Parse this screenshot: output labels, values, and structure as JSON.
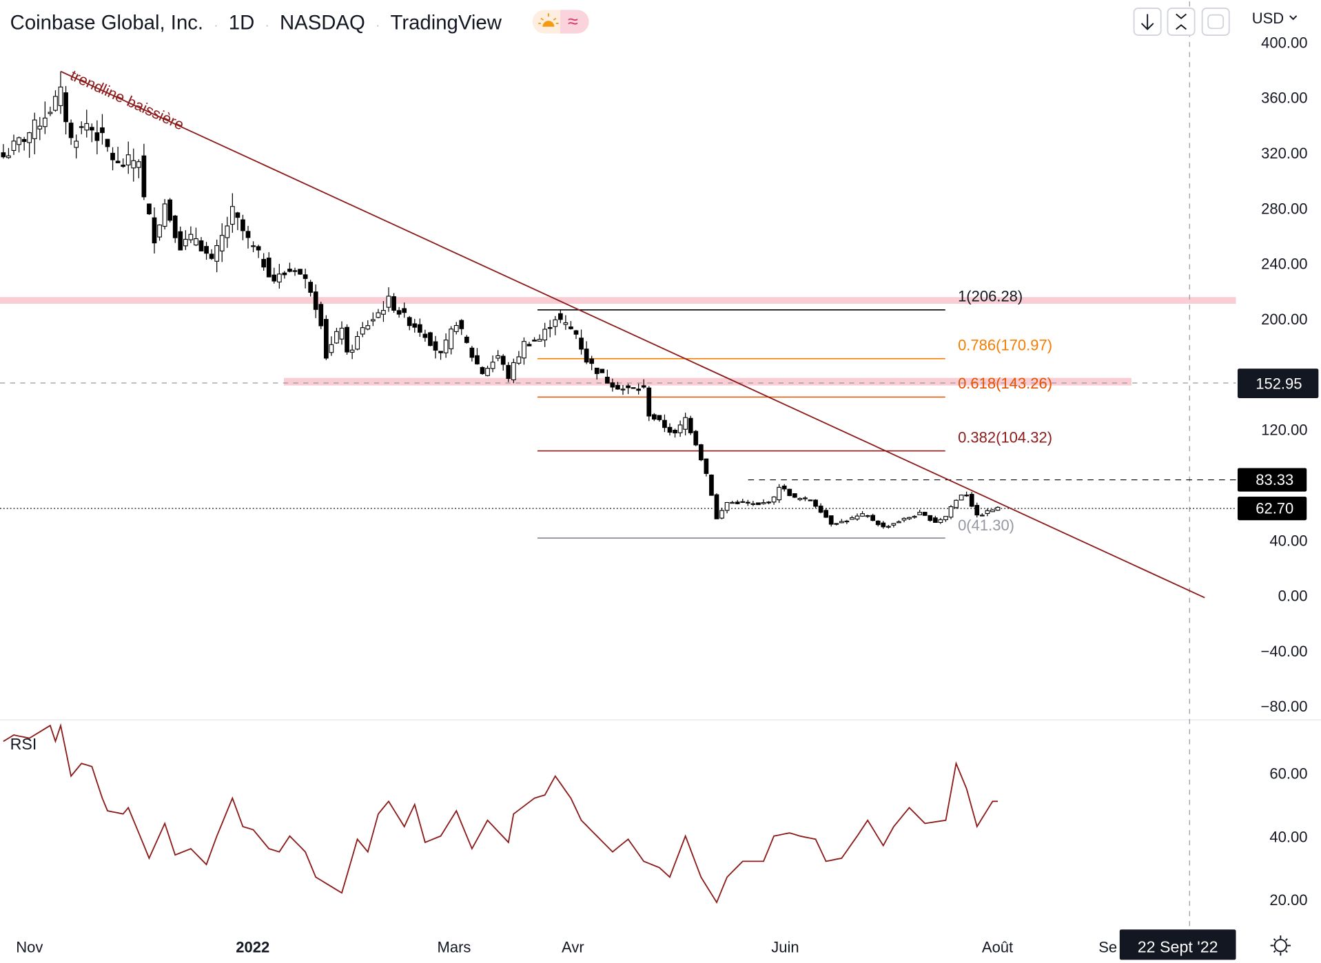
{
  "header": {
    "symbol": "Coinbase Global, Inc.",
    "interval": "1D",
    "exchange": "NASDAQ",
    "source": "TradingView",
    "sep": "·",
    "approx_icon": "≈"
  },
  "toolbar": {
    "currency": "USD"
  },
  "colors": {
    "trend": "#8b1a1a",
    "zone": "#f9cdd3",
    "orange": "#f57c00",
    "fib382": "#8b1a1a",
    "up": "#ffffff",
    "down": "#000000"
  },
  "price_axis": {
    "ticks": [
      "400.00",
      "360.00",
      "320.00",
      "280.00",
      "240.00",
      "200.00",
      "120.00",
      "40.00",
      "0.00",
      "−40.00",
      "−80.00"
    ],
    "values": [
      400,
      360,
      320,
      280,
      240,
      200,
      120,
      40,
      0,
      -40,
      -80
    ]
  },
  "price_tags": {
    "crosshair": "152.95",
    "resistance": "83.33",
    "last": "62.70"
  },
  "rsi_axis": {
    "ticks": [
      "60.00",
      "40.00",
      "20.00"
    ],
    "values": [
      60,
      40,
      20
    ]
  },
  "time_axis": {
    "labels": [
      "Nov",
      "2022",
      "Mars",
      "Avr",
      "Juin",
      "Août",
      "Se"
    ],
    "crosshair_date": "22 Sept '22"
  },
  "annotations": {
    "trendline": "trendline baissière",
    "rsi_label": "RSI"
  },
  "fib": [
    {
      "label": "1(206.28)",
      "price": 206.28,
      "color": "#000000",
      "label_color": "#131722"
    },
    {
      "label": "0.786(170.97)",
      "price": 170.97,
      "color": "#f57c00",
      "label_color": "#f57c00"
    },
    {
      "label": "0.618(143.26)",
      "price": 143.26,
      "color": "#e65100",
      "label_color": "#e65100"
    },
    {
      "label": "0.382(104.32)",
      "price": 104.32,
      "color": "#8b1a1a",
      "label_color": "#8b1a1a"
    },
    {
      "label": "0(41.30)",
      "price": 41.3,
      "color": "#787b86",
      "label_color": "#9598a1"
    }
  ],
  "chart_data": {
    "type": "candlestick",
    "title": "Coinbase Global, Inc. · 1D · NASDAQ",
    "close_path": [
      [
        0,
        317
      ],
      [
        6,
        338
      ],
      [
        11,
        362
      ],
      [
        13,
        329
      ],
      [
        16,
        341
      ],
      [
        19,
        329
      ],
      [
        22,
        310
      ],
      [
        26,
        316
      ],
      [
        27,
        286
      ],
      [
        29,
        259
      ],
      [
        31,
        283
      ],
      [
        34,
        253
      ],
      [
        37,
        259
      ],
      [
        40,
        240
      ],
      [
        44,
        277
      ],
      [
        47,
        256
      ],
      [
        50,
        240
      ],
      [
        52,
        228
      ],
      [
        56,
        237
      ],
      [
        59,
        222
      ],
      [
        61,
        198
      ],
      [
        62,
        173
      ],
      [
        65,
        195
      ],
      [
        66,
        173
      ],
      [
        69,
        192
      ],
      [
        72,
        204
      ],
      [
        74,
        213
      ],
      [
        77,
        201
      ],
      [
        81,
        189
      ],
      [
        84,
        173
      ],
      [
        87,
        198
      ],
      [
        90,
        173
      ],
      [
        92,
        161
      ],
      [
        95,
        173
      ],
      [
        97,
        158
      ],
      [
        100,
        182
      ],
      [
        103,
        185
      ],
      [
        106,
        201
      ],
      [
        110,
        189
      ],
      [
        112,
        170
      ],
      [
        116,
        155
      ],
      [
        119,
        149
      ],
      [
        123,
        149
      ],
      [
        124,
        131
      ],
      [
        127,
        122
      ],
      [
        129,
        116
      ],
      [
        131,
        128
      ],
      [
        133,
        110
      ],
      [
        135,
        88
      ],
      [
        136,
        73
      ],
      [
        137,
        55
      ],
      [
        139,
        67
      ],
      [
        142,
        67
      ],
      [
        145,
        65
      ],
      [
        148,
        70
      ],
      [
        149,
        79
      ],
      [
        152,
        70
      ],
      [
        155,
        69
      ],
      [
        157,
        61
      ],
      [
        159,
        52
      ],
      [
        161,
        53
      ],
      [
        165,
        58
      ],
      [
        166,
        57
      ],
      [
        169,
        49
      ],
      [
        173,
        55
      ],
      [
        176,
        59
      ],
      [
        179,
        53
      ],
      [
        181,
        57
      ],
      [
        182,
        64
      ],
      [
        184,
        73
      ],
      [
        185,
        73
      ],
      [
        187,
        57
      ],
      [
        190,
        62
      ],
      [
        191,
        62.7
      ]
    ],
    "rsi_path": [
      [
        0,
        70
      ],
      [
        2,
        72
      ],
      [
        5,
        71
      ],
      [
        9,
        75
      ],
      [
        10,
        70
      ],
      [
        11,
        75
      ],
      [
        13,
        59
      ],
      [
        15,
        63
      ],
      [
        17,
        62
      ],
      [
        19,
        52
      ],
      [
        20,
        48
      ],
      [
        23,
        47
      ],
      [
        24,
        49
      ],
      [
        26,
        41
      ],
      [
        28,
        33
      ],
      [
        31,
        44
      ],
      [
        33,
        34
      ],
      [
        36,
        36
      ],
      [
        39,
        31
      ],
      [
        41,
        40
      ],
      [
        44,
        52
      ],
      [
        46,
        43
      ],
      [
        48,
        42
      ],
      [
        51,
        36
      ],
      [
        53,
        35
      ],
      [
        55,
        40
      ],
      [
        58,
        35
      ],
      [
        60,
        27
      ],
      [
        65,
        22
      ],
      [
        68,
        39
      ],
      [
        70,
        35
      ],
      [
        72,
        47
      ],
      [
        74,
        51
      ],
      [
        77,
        43
      ],
      [
        79,
        50
      ],
      [
        81,
        38
      ],
      [
        84,
        40
      ],
      [
        87,
        48
      ],
      [
        90,
        36
      ],
      [
        93,
        45
      ],
      [
        97,
        38
      ],
      [
        98,
        47
      ],
      [
        102,
        52
      ],
      [
        104,
        53
      ],
      [
        106,
        59
      ],
      [
        109,
        52
      ],
      [
        111,
        45
      ],
      [
        114,
        40
      ],
      [
        117,
        35
      ],
      [
        120,
        39
      ],
      [
        123,
        32
      ],
      [
        126,
        30
      ],
      [
        128,
        27
      ],
      [
        131,
        40
      ],
      [
        134,
        27
      ],
      [
        137,
        19
      ],
      [
        139,
        27
      ],
      [
        142,
        32
      ],
      [
        146,
        32
      ],
      [
        148,
        40
      ],
      [
        151,
        41
      ],
      [
        153,
        40
      ],
      [
        156,
        39
      ],
      [
        158,
        32
      ],
      [
        161,
        33
      ],
      [
        164,
        40
      ],
      [
        166,
        45
      ],
      [
        169,
        37
      ],
      [
        171,
        43
      ],
      [
        174,
        49
      ],
      [
        177,
        44
      ],
      [
        181,
        45
      ],
      [
        183,
        63
      ],
      [
        185,
        55
      ],
      [
        187,
        43
      ],
      [
        190,
        51
      ],
      [
        191,
        51
      ]
    ],
    "price_range": [
      -80,
      400
    ],
    "rsi_range": [
      10,
      80
    ]
  }
}
